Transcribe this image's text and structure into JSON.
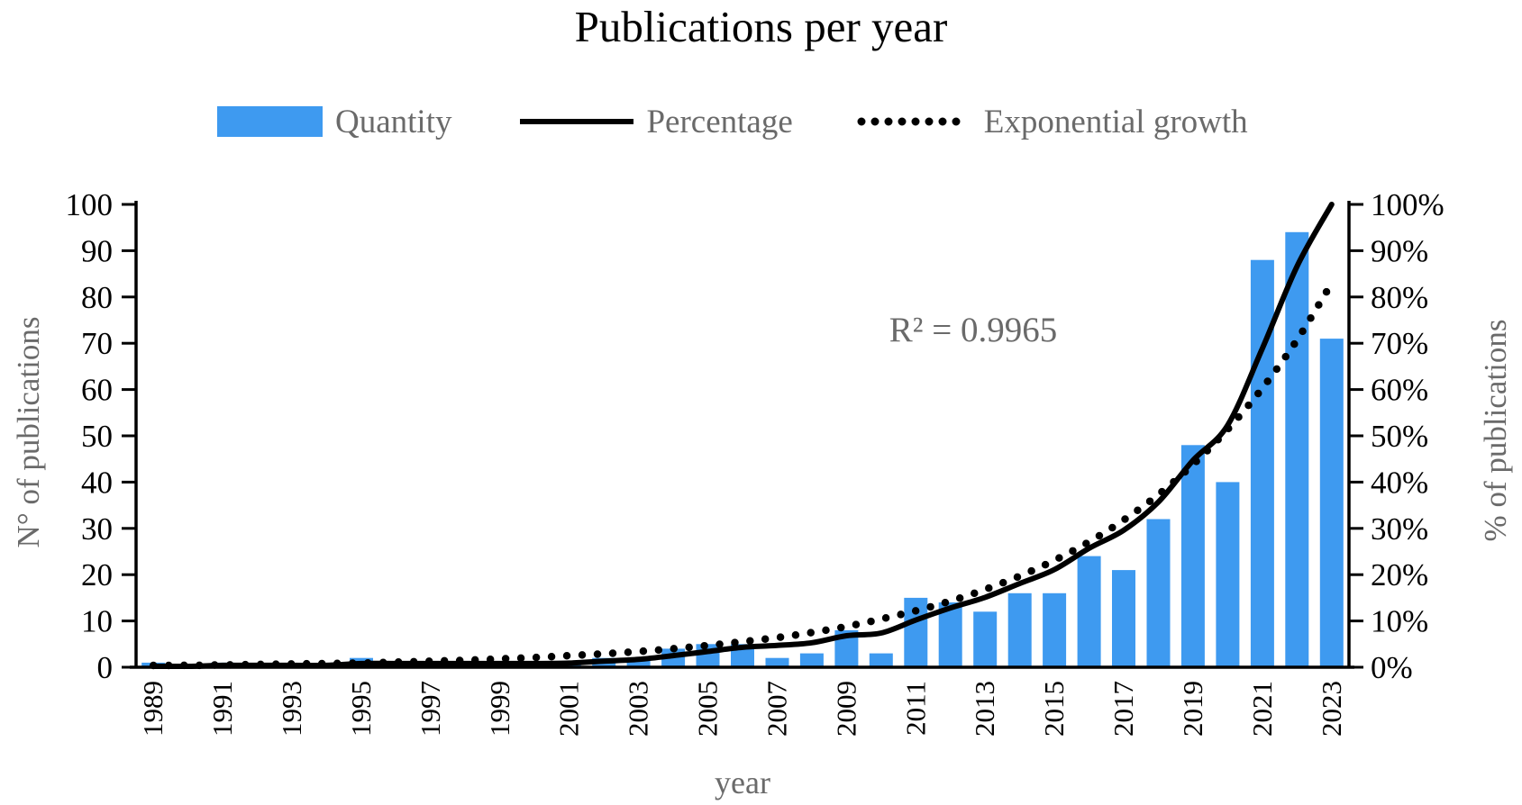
{
  "title": "Publications per year",
  "legend": {
    "quantity_label": "Quantity",
    "percentage_label": "Percentage",
    "exponential_label": "Exponential growth"
  },
  "annotation": {
    "r_squared": "R² = 0.9965"
  },
  "axes": {
    "left_title": "N° of publications",
    "right_title": "% of publications",
    "x_title": "year",
    "left_tick_labels": [
      "0",
      "10",
      "20",
      "30",
      "40",
      "50",
      "60",
      "70",
      "80",
      "90",
      "100"
    ],
    "right_tick_labels": [
      "0%",
      "10%",
      "20%",
      "30%",
      "40%",
      "50%",
      "60%",
      "70%",
      "80%",
      "90%",
      "100%"
    ]
  },
  "colors": {
    "bar": "#3e9af0",
    "line": "#000000",
    "axis": "#000000",
    "gray_text": "#6a6a6a"
  },
  "chart_data": {
    "type": "bar",
    "title": "Publications per year",
    "xlabel": "year",
    "ylabel_left": "N° of publications",
    "ylabel_right": "% of publications",
    "left_ylim": [
      0,
      100
    ],
    "right_ylim_percent": [
      0,
      100
    ],
    "grid": false,
    "legend_position": "top",
    "categories": [
      1989,
      1990,
      1991,
      1992,
      1993,
      1994,
      1995,
      1996,
      1997,
      1998,
      1999,
      2000,
      2001,
      2002,
      2003,
      2004,
      2005,
      2006,
      2007,
      2008,
      2009,
      2010,
      2011,
      2012,
      2013,
      2014,
      2015,
      2016,
      2017,
      2018,
      2019,
      2020,
      2021,
      2022,
      2023
    ],
    "x_tick_labels": [
      "1989",
      "1991",
      "1993",
      "1995",
      "1997",
      "1999",
      "2001",
      "2003",
      "2005",
      "2007",
      "2009",
      "2011",
      "2013",
      "2015",
      "2017",
      "2019",
      "2021",
      "2023"
    ],
    "series": [
      {
        "name": "Quantity",
        "type": "bar",
        "axis": "left",
        "values": [
          1,
          0,
          1,
          0,
          0,
          0,
          2,
          0,
          0,
          0,
          0,
          0,
          1,
          2,
          2,
          4,
          5,
          5,
          2,
          3,
          8,
          3,
          15,
          14,
          12,
          16,
          16,
          24,
          21,
          32,
          48,
          40,
          88,
          94,
          71
        ]
      },
      {
        "name": "Percentage",
        "type": "line",
        "axis": "right",
        "values": [
          0.2,
          0.2,
          0.4,
          0.4,
          0.4,
          0.4,
          0.8,
          0.8,
          0.8,
          0.8,
          0.8,
          0.8,
          0.9,
          1.3,
          1.7,
          2.5,
          3.4,
          4.3,
          4.7,
          5.3,
          6.8,
          7.4,
          10.2,
          12.8,
          15.1,
          18.1,
          21.1,
          25.7,
          29.6,
          35.7,
          44.7,
          52.3,
          68.9,
          86.6,
          100
        ]
      },
      {
        "name": "Exponential growth",
        "type": "dotted-line",
        "axis": "right",
        "values": [
          0.4,
          0.4,
          0.5,
          0.6,
          0.7,
          0.8,
          0.9,
          1.1,
          1.3,
          1.5,
          1.8,
          2.1,
          2.5,
          2.9,
          3.4,
          4.0,
          4.7,
          5.5,
          6.4,
          7.5,
          8.8,
          10.4,
          12.2,
          14.3,
          16.8,
          19.7,
          23.1,
          27.1,
          31.8,
          37.3,
          43.8,
          51.4,
          60.3,
          70.7,
          83.0
        ]
      }
    ],
    "annotations": [
      {
        "text": "R² = 0.9965",
        "near": "upper-middle"
      }
    ]
  }
}
